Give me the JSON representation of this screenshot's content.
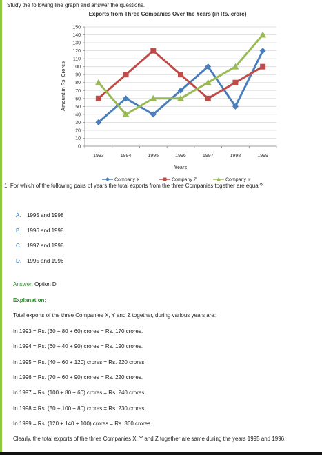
{
  "instruction": "Study the following line graph and answer the questions.",
  "question": {
    "number_label": "1.",
    "text": "For which of the following pairs of years the total exports from the three Companies together are equal?",
    "options": [
      {
        "letter": "A.",
        "text": "1995 and 1998"
      },
      {
        "letter": "B.",
        "text": "1996 and 1998"
      },
      {
        "letter": "C.",
        "text": "1997 and 1998"
      },
      {
        "letter": "D.",
        "text": "1995 and 1996"
      }
    ]
  },
  "answer": {
    "label": "Answer:",
    "value": "Option D"
  },
  "explanation": {
    "heading": "Explanation:",
    "intro": "Total exports of the three Companies X, Y and Z together, during various years are:",
    "lines": [
      "In 1993 = Rs. (30 + 80 + 60) crores = Rs. 170 crores.",
      "In 1994 = Rs. (60 + 40 + 90) crores = Rs. 190 crores.",
      "In 1995 = Rs. (40 + 60 + 120) crores = Rs. 220 crores.",
      "In 1996 = Rs. (70 + 60 + 90) crores = Rs. 220 crores.",
      "In 1997 = Rs. (100 + 80 + 60) crores = Rs. 240 crores.",
      "In 1998 = Rs. (50 + 100 + 80) crores = Rs. 230 crores.",
      "In 1999 = Rs. (120 + 140 + 100) crores = Rs. 360 crores."
    ],
    "conclusion": "Clearly, the total exports of the three Companies X, Y and Z together are same during the years 1995 and 1996."
  },
  "chart_data": {
    "type": "line",
    "title": "Exports from Three Companies Over the Years (in Rs. crore)",
    "xlabel": "Years",
    "ylabel": "Amount in Rs. Crores",
    "categories": [
      "1993",
      "1994",
      "1995",
      "1996",
      "1997",
      "1998",
      "1999"
    ],
    "ylim": [
      0,
      150
    ],
    "yticks": [
      0,
      10,
      20,
      30,
      40,
      50,
      60,
      70,
      80,
      90,
      100,
      110,
      120,
      130,
      140,
      150
    ],
    "grid": true,
    "legend_position": "bottom",
    "series": [
      {
        "name": "Company X",
        "color": "#4a7ebb",
        "marker": "diamond",
        "values": [
          30,
          60,
          40,
          70,
          100,
          50,
          120
        ]
      },
      {
        "name": "Company Z",
        "color": "#be4b48",
        "marker": "square",
        "values": [
          60,
          90,
          120,
          90,
          60,
          80,
          100
        ]
      },
      {
        "name": "Company Y",
        "color": "#98b954",
        "marker": "triangle",
        "values": [
          80,
          40,
          60,
          60,
          80,
          100,
          140
        ]
      }
    ]
  }
}
